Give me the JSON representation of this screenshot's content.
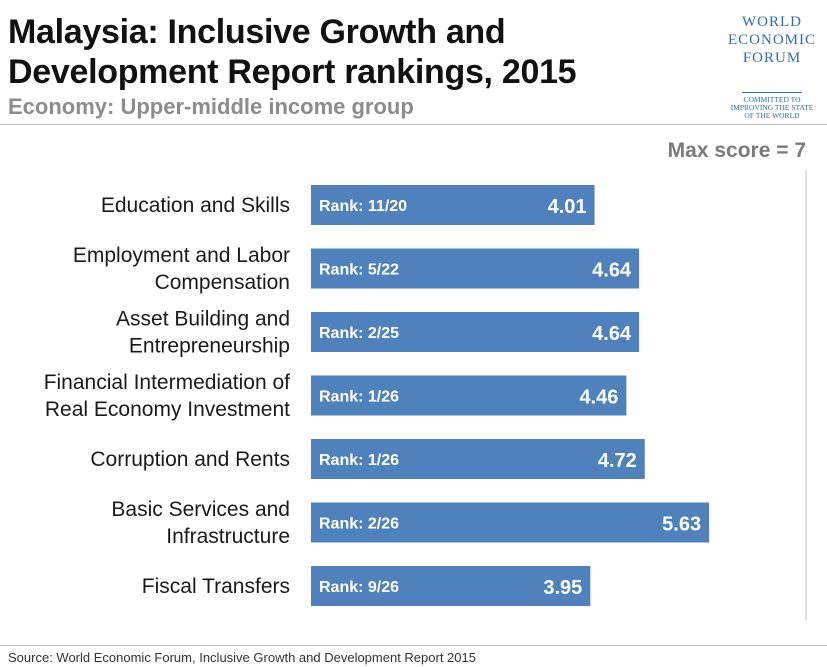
{
  "header": {
    "title_line1": "Malaysia: Inclusive Growth and",
    "title_line2": "Development Report rankings, 2015",
    "subtitle": "Economy: Upper-middle income group"
  },
  "logo": {
    "line1": "WORLD",
    "line2": "ECONOMIC",
    "line3": "FORUM",
    "tag1": "COMMITTED TO",
    "tag2": "IMPROVING THE STATE",
    "tag3": "OF THE WORLD",
    "color": "#2f6db3"
  },
  "footer": {
    "source": "Source: World Economic Forum, Inclusive Growth and Development Report 2015"
  },
  "chart_data": {
    "type": "bar",
    "orientation": "horizontal",
    "title": "Malaysia: Inclusive Growth and Development Report rankings, 2015",
    "annotation": "Max score = 7",
    "xlim": [
      0,
      7
    ],
    "grid": false,
    "bar_color": "#4f81bd",
    "categories": [
      [
        "Education and Skills"
      ],
      [
        "Employment and Labor",
        "Compensation"
      ],
      [
        "Asset Building and",
        "Entrepreneurship"
      ],
      [
        "Financial Intermediation of",
        "Real Economy Investment"
      ],
      [
        "Corruption and Rents"
      ],
      [
        "Basic Services and",
        "Infrastructure"
      ],
      [
        "Fiscal Transfers"
      ]
    ],
    "values": [
      4.01,
      4.64,
      4.64,
      4.46,
      4.72,
      5.63,
      3.95
    ],
    "value_labels": [
      "4.01",
      "4.64",
      "4.64",
      "4.46",
      "4.72",
      "5.63",
      "3.95"
    ],
    "rank_labels": [
      "Rank: 11/20",
      "Rank: 5/22",
      "Rank: 2/25",
      "Rank: 1/26",
      "Rank: 1/26",
      "Rank: 2/26",
      "Rank: 9/26"
    ]
  }
}
